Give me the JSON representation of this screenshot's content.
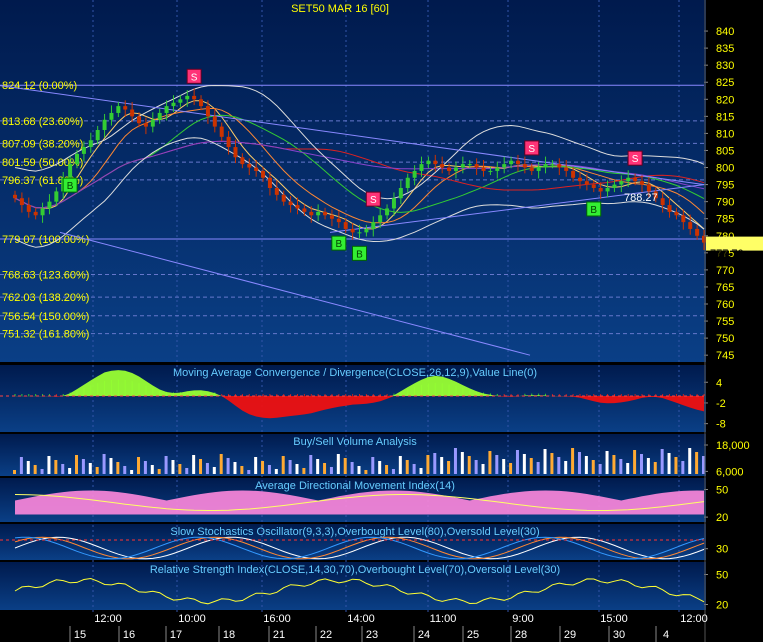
{
  "chart_data": {
    "type": "candlestick",
    "title": "SET50 MAR 16   [60]",
    "main": {
      "ylim": [
        743,
        845
      ],
      "y_ticks": [
        840,
        835,
        830,
        825,
        820,
        815,
        810,
        805,
        800,
        795,
        790,
        785,
        780,
        775,
        770,
        765,
        760,
        755,
        750,
        745
      ],
      "last_price": "777.70",
      "price_annotation": {
        "label": "788.27",
        "value": 788.27
      },
      "fib_levels": [
        {
          "label": "824.12 (0.00%)",
          "value": 824.12
        },
        {
          "label": "813.68 (23.60%)",
          "value": 813.68
        },
        {
          "label": "807.09 (38.20%)",
          "value": 807.09
        },
        {
          "label": "801.59 (50.00%)",
          "value": 801.59
        },
        {
          "label": "796.37 (61.80%)",
          "value": 796.37
        },
        {
          "label": "779.07 (100.00%)",
          "value": 779.07
        },
        {
          "label": "768.63 (123.60%)",
          "value": 768.63
        },
        {
          "label": "762.03 (138.20%)",
          "value": 762.03
        },
        {
          "label": "756.54 (150.00%)",
          "value": 756.54
        },
        {
          "label": "751.32 (161.80%)",
          "value": 751.32
        }
      ],
      "closes": [
        791,
        789,
        787,
        786,
        788,
        790,
        793,
        797,
        801,
        804,
        806,
        808,
        811,
        814,
        816,
        818,
        817,
        815,
        813,
        812,
        814,
        816,
        818,
        819,
        820,
        821,
        820,
        818,
        815,
        812,
        809,
        806,
        803,
        801,
        800,
        799,
        797,
        794,
        792,
        790,
        789,
        788,
        787,
        786,
        787,
        786,
        785,
        784,
        782,
        781,
        781,
        782,
        784,
        786,
        788,
        791,
        794,
        797,
        799,
        801,
        802,
        801,
        800,
        799,
        800,
        801,
        801,
        800,
        799,
        799,
        800,
        801,
        802,
        801,
        800,
        799,
        800,
        801,
        801,
        800,
        799,
        797,
        796,
        795,
        794,
        793,
        794,
        795,
        796,
        797,
        796,
        795,
        793,
        791,
        789,
        787,
        786,
        784,
        782,
        780,
        778
      ]
    },
    "panels": [
      {
        "title": "Moving Average Convergence / Divergence(CLOSE,26,12,9),Value Line(0)",
        "y_ticks": [
          "4",
          "-2",
          "-8"
        ]
      },
      {
        "title": "Buy/Sell Volume Analysis",
        "y_ticks": [
          "18,000",
          "6,000"
        ]
      },
      {
        "title": "Average Directional Movement Index(14)",
        "y_ticks": [
          "50",
          "20"
        ]
      },
      {
        "title": "Slow Stochastics Oscillator(9,3,3),Overbought Level(80),Oversold Level(30)",
        "y_ticks": [
          "30"
        ]
      },
      {
        "title": "Relative Strength Index(CLOSE,14,30,70),Overbought Level(70),Oversold Level(30)",
        "y_ticks": [
          "50",
          "20"
        ]
      }
    ],
    "x_time_labels": [
      "12:00",
      "10:00",
      "16:00",
      "14:00",
      "11:00",
      "9:00",
      "15:00",
      "12:00"
    ],
    "x_day_labels": [
      "15",
      "16",
      "17",
      "18",
      "21",
      "22",
      "23",
      "24",
      "25",
      "28",
      "29",
      "30",
      "4"
    ],
    "signals": [
      {
        "type": "B",
        "index": 8
      },
      {
        "type": "S",
        "index": 26
      },
      {
        "type": "B",
        "index": 47
      },
      {
        "type": "B",
        "index": 50
      },
      {
        "type": "S",
        "index": 52
      },
      {
        "type": "S",
        "index": 75
      },
      {
        "type": "B",
        "index": 84
      },
      {
        "type": "S",
        "index": 90
      }
    ],
    "colors": {
      "background_top": "#001a4d",
      "background_bottom": "#0a3f86",
      "up": "#33cc33",
      "down": "#cc3300",
      "buy": "#33ee33",
      "sell": "#ff3377",
      "tick_text": "#ffff00"
    }
  }
}
